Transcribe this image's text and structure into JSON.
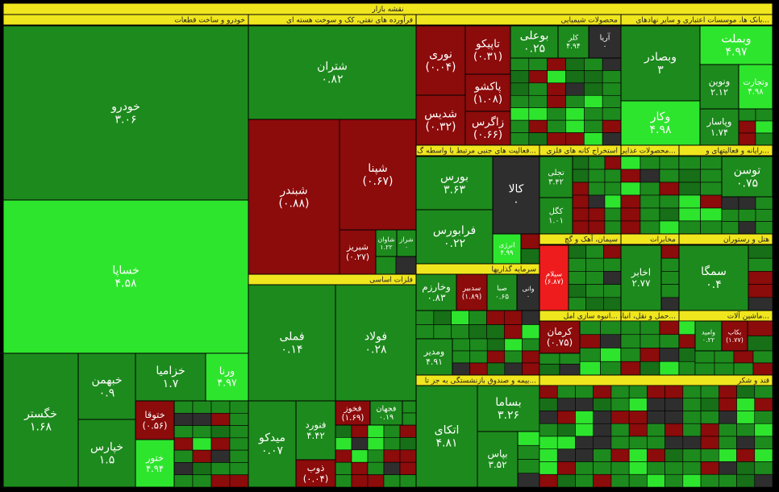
{
  "header": {
    "title": "نقشه بازار"
  },
  "sectors": [
    {
      "title": "خودرو و ساخت قطعات",
      "tiles": [
        {
          "name": "خودرو",
          "change": "۳.۰۶",
          "color": "#1d8a1d"
        },
        {
          "name": "خساپا",
          "change": "۴.۵۸",
          "color": "#2ee52e"
        },
        {
          "name": "خگستر",
          "change": "۱.۶۸",
          "color": "#1d8a1d"
        },
        {
          "name": "خبهمن",
          "change": "۰.۹",
          "color": "#1d8a1d"
        },
        {
          "name": "خزامیا",
          "change": "۱.۷",
          "color": "#1d8a1d"
        },
        {
          "name": "ورنا",
          "change": "۴.۹۷",
          "color": "#2ee52e"
        },
        {
          "name": "خپارس",
          "change": "۱.۵",
          "color": "#1d8a1d"
        },
        {
          "name": "ختوقا",
          "change": "(۰.۵۶)",
          "color": "#8c0b0b"
        },
        {
          "name": "ختور",
          "change": "۴.۹۴",
          "color": "#2ee52e"
        }
      ]
    },
    {
      "title": "فرآورده های نفتی، کک و سوخت هسته ای",
      "tiles": [
        {
          "name": "شتران",
          "change": "۰.۸۲",
          "color": "#1d8a1d"
        },
        {
          "name": "شبندر",
          "change": "(۰.۸۸)",
          "color": "#8c0b0b"
        },
        {
          "name": "شپنا",
          "change": "(۰.۶۷)",
          "color": "#8c0b0b"
        },
        {
          "name": "شبریز",
          "change": "(۰.۲۷)",
          "color": "#8c0b0b"
        },
        {
          "name": "شاوان",
          "change": "۱.۲۲",
          "color": "#1d8a1d"
        },
        {
          "name": "شراز",
          "change": "۰",
          "color": "#1d8a1d"
        }
      ]
    },
    {
      "title": "فلزات اساسی",
      "tiles": [
        {
          "name": "فملی",
          "change": "۰.۱۴",
          "color": "#1d8a1d"
        },
        {
          "name": "فولاد",
          "change": "۰.۲۸",
          "color": "#1d8a1d"
        },
        {
          "name": "میدکو",
          "change": "۰.۰۷",
          "color": "#1d8a1d"
        },
        {
          "name": "فنورد",
          "change": "۴.۴۲",
          "color": "#1d8a1d"
        },
        {
          "name": "ذوب",
          "change": "(۰.۰۴)",
          "color": "#8c0b0b"
        },
        {
          "name": "فخوز",
          "change": "(۱.۶۹)",
          "color": "#8c0b0b"
        },
        {
          "name": "فجهان",
          "change": "۰.۱۹",
          "color": "#1d8a1d"
        }
      ]
    },
    {
      "title": "محصولات شیمیایی",
      "tiles": [
        {
          "name": "نوری",
          "change": "(۰.۰۴)",
          "color": "#8c0b0b"
        },
        {
          "name": "شدیس",
          "change": "(۰.۳۲)",
          "color": "#8c0b0b"
        },
        {
          "name": "تاپیکو",
          "change": "(۰.۳۱)",
          "color": "#8c0b0b"
        },
        {
          "name": "پاکشو",
          "change": "(۱.۰۸)",
          "color": "#8c0b0b"
        },
        {
          "name": "زاگرس",
          "change": "(۰.۶۶)",
          "color": "#8c0b0b"
        },
        {
          "name": "بوعلی",
          "change": "۰.۲۵",
          "color": "#1d8a1d"
        },
        {
          "name": "کلر",
          "change": "۴.۹۴",
          "color": "#1d8a1d"
        },
        {
          "name": "آریا",
          "change": "۰",
          "color": "#2e2e2e"
        }
      ]
    },
    {
      "title": "بانک ها، موسسات اعتباری و سایر نهادهای...",
      "tiles": [
        {
          "name": "وبصادر",
          "change": "۳",
          "color": "#1d8a1d"
        },
        {
          "name": "وبملت",
          "change": "۴.۹۷",
          "color": "#2ee52e"
        },
        {
          "name": "ونوین",
          "change": "۲.۱۲",
          "color": "#1d8a1d"
        },
        {
          "name": "وتجارت",
          "change": "۴.۹۸",
          "color": "#2ee52e"
        },
        {
          "name": "وکار",
          "change": "۴.۹۸",
          "color": "#2ee52e"
        },
        {
          "name": "وپاسار",
          "change": "۱.۷۴",
          "color": "#1d8a1d"
        }
      ]
    },
    {
      "title": "فعالیت های جنبی مرتبط با واسطه گ...",
      "tiles": [
        {
          "name": "بورس",
          "change": "۳.۶۳",
          "color": "#1d8a1d"
        },
        {
          "name": "فرابورس",
          "change": "۰.۲۲",
          "color": "#1d8a1d"
        },
        {
          "name": "کالا",
          "change": "۰",
          "color": "#2e2e2e"
        },
        {
          "name": "انرژی",
          "change": "۴.۹۹",
          "color": "#2ee52e"
        }
      ]
    },
    {
      "title": "استخراج کانه های فلزی",
      "tiles": [
        {
          "name": "تجلی",
          "change": "۳.۴۲",
          "color": "#1d8a1d"
        },
        {
          "name": "کگل",
          "change": "۱.۰۱",
          "color": "#1d8a1d"
        }
      ]
    },
    {
      "title": "محصولات غذایی و آ...",
      "tiles": []
    },
    {
      "title": "رایانه و فعالیتهای و...",
      "tiles": [
        {
          "name": "توسن",
          "change": "۰.۷۵",
          "color": "#1d8a1d"
        }
      ]
    },
    {
      "title": "سیمان، آهک و گچ",
      "tiles": [
        {
          "name": "سیلام",
          "change": "(۶.۸۷)",
          "color": "#ee1c1c"
        }
      ]
    },
    {
      "title": "مخابرات",
      "tiles": [
        {
          "name": "اخابر",
          "change": "۲.۷۷",
          "color": "#1d8a1d"
        }
      ]
    },
    {
      "title": "هتل و رستوران",
      "tiles": [
        {
          "name": "سمگا",
          "change": "۰.۴",
          "color": "#1d8a1d"
        }
      ]
    },
    {
      "title": "سرمایه گذاریها",
      "tiles": [
        {
          "name": "وخارزم",
          "change": "۰.۸۳",
          "color": "#1d8a1d"
        },
        {
          "name": "سدبیر",
          "change": "(۱.۸۹)",
          "color": "#8c0b0b"
        },
        {
          "name": "صبا",
          "change": "۰.۶۵",
          "color": "#1d8a1d"
        },
        {
          "name": "وانی",
          "change": "۰",
          "color": "#2e2e2e"
        },
        {
          "name": "ومدیر",
          "change": "۴.۹۱",
          "color": "#1d8a1d"
        }
      ]
    },
    {
      "title": "بیمه و صندوق بازنشستگی به جز تا...",
      "tiles": [
        {
          "name": "اتکای",
          "change": "۴.۸۱",
          "color": "#1d8a1d"
        },
        {
          "name": "بساما",
          "change": "۳.۲۶",
          "color": "#1d8a1d"
        },
        {
          "name": "بپاس",
          "change": "۳.۵۲",
          "color": "#1d8a1d"
        }
      ]
    },
    {
      "title": "انبوه سازی امل...",
      "tiles": [
        {
          "name": "کرمان",
          "change": "(۰.۷۵)",
          "color": "#8c0b0b"
        }
      ]
    },
    {
      "title": "حمل و نقل، انبار...",
      "tiles": []
    },
    {
      "title": "ماشین آلات...",
      "tiles": [
        {
          "name": "وامید",
          "change": "۰.۲۲",
          "color": "#1d8a1d"
        },
        {
          "name": "بکاب",
          "change": "(۱.۷۷)",
          "color": "#8c0b0b"
        }
      ]
    },
    {
      "title": "قند و شکر",
      "tiles": []
    }
  ]
}
